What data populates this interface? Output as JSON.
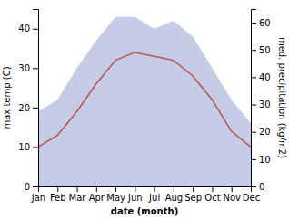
{
  "chart_data": {
    "type": "line",
    "x_label": "date (month)",
    "y_label": "max temp (C)",
    "y2_label": "med. precipitation (kg/m2)",
    "categories": [
      "Jan",
      "Feb",
      "Mar",
      "Apr",
      "May",
      "Jun",
      "Jul",
      "Aug",
      "Sep",
      "Oct",
      "Nov",
      "Dec"
    ],
    "series": [
      {
        "type": "area",
        "axis": "y2",
        "color": "#c5cce8",
        "values": [
          27.444444444444443,
          31.77777777777778,
          43.333333333333336,
          53.44444444444444,
          62.111111111111114,
          62.111111111111114,
          57.77777777777778,
          60.666666666666664,
          54.888888888888886,
          43.333333333333336,
          31.77777777777778,
          23.11111111111111
        ]
      },
      {
        "type": "line",
        "color": "#c0504d",
        "values": [
          10,
          13,
          19,
          26,
          32,
          34,
          33,
          32,
          28,
          22,
          14,
          10
        ]
      }
    ],
    "ylim": [
      0,
      45
    ],
    "yticks": [
      0,
      10,
      20,
      30,
      40
    ],
    "y2lim": [
      0,
      65
    ],
    "y2ticks": [
      0,
      10,
      20,
      30,
      40,
      50,
      60
    ],
    "grid": false
  }
}
